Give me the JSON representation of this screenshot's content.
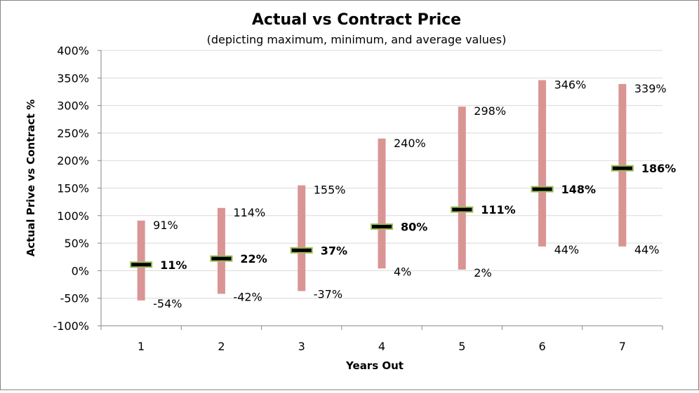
{
  "chart_data": {
    "type": "range",
    "title": "Actual vs Contract Price",
    "subtitle": "(depicting maximum, minimum, and average values)",
    "xlabel": "Years Out",
    "ylabel": "Actual Prive vs Contract %",
    "categories": [
      "1",
      "2",
      "3",
      "4",
      "5",
      "6",
      "7"
    ],
    "series": [
      {
        "name": "Maximum",
        "values": [
          91,
          114,
          155,
          240,
          298,
          346,
          339
        ]
      },
      {
        "name": "Minimum",
        "values": [
          -54,
          -42,
          -37,
          4,
          2,
          44,
          44
        ]
      },
      {
        "name": "Average",
        "values": [
          11,
          22,
          37,
          80,
          111,
          148,
          186
        ]
      }
    ],
    "value_labels": {
      "max": [
        "91%",
        "114%",
        "155%",
        "240%",
        "298%",
        "346%",
        "339%"
      ],
      "min": [
        "-54%",
        "-42%",
        "-37%",
        "4%",
        "2%",
        "44%",
        "44%"
      ],
      "avg": [
        "11%",
        "22%",
        "37%",
        "80%",
        "111%",
        "148%",
        "186%"
      ]
    },
    "y_ticks": [
      -100,
      -50,
      0,
      50,
      100,
      150,
      200,
      250,
      300,
      350,
      400
    ],
    "y_tick_labels": [
      "-100%",
      "-50%",
      "0%",
      "50%",
      "100%",
      "150%",
      "200%",
      "250%",
      "300%",
      "350%",
      "400%"
    ],
    "ylim": [
      -100,
      400
    ],
    "grid": true,
    "legend": "none",
    "colors": {
      "range_bar": "#d99594",
      "avg_marker_fill": "#000000",
      "avg_marker_border": "#9bbb59",
      "gridline": "#d9d9d9",
      "axis": "#868686"
    }
  }
}
